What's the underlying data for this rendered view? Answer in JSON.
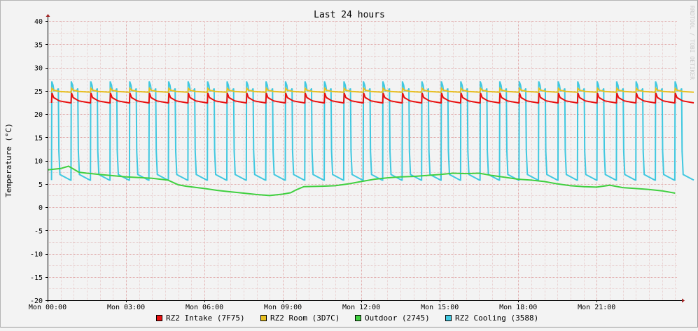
{
  "chart_data": {
    "type": "line",
    "title": "Last 24 hours",
    "ylabel": "Temperature (°C)",
    "watermark": "RRDTOOL / TOBI OETIKER",
    "ylim": [
      -20,
      40
    ],
    "y_ticks": [
      40,
      35,
      30,
      25,
      20,
      15,
      10,
      5,
      0,
      -5,
      -10,
      -15,
      -20
    ],
    "x_range_hours": [
      0,
      24.1
    ],
    "x_ticks": [
      {
        "h": 0,
        "label": "Mon 00:00"
      },
      {
        "h": 3,
        "label": "Mon 03:00"
      },
      {
        "h": 6,
        "label": "Mon 06:00"
      },
      {
        "h": 9,
        "label": "Mon 09:00"
      },
      {
        "h": 12,
        "label": "Mon 12:00"
      },
      {
        "h": 15,
        "label": "Mon 15:00"
      },
      {
        "h": 18,
        "label": "Mon 18:00"
      },
      {
        "h": 21,
        "label": "Mon 21:00"
      }
    ],
    "grid": true,
    "legend_position": "bottom",
    "series": [
      {
        "name": "RZ2 Intake (7F75)",
        "color": "#e81010",
        "kind": "cycle",
        "period_h": 0.745,
        "phase_h": 0.15,
        "peak": 24.5,
        "base": 22.4
      },
      {
        "name": "RZ2 Room (3D7C)",
        "color": "#e8c020",
        "kind": "cycle",
        "period_h": 0.745,
        "phase_h": 0.15,
        "peak": 25.5,
        "base": 24.7
      },
      {
        "name": "Outdoor (2745)",
        "color": "#40d040",
        "kind": "points",
        "x": [
          0,
          0.5,
          0.8,
          1.2,
          1.5,
          2,
          3,
          4,
          4.6,
          5,
          5.3,
          6,
          6.5,
          7,
          7.5,
          8,
          8.5,
          9,
          9.3,
          9.5,
          9.8,
          10.5,
          11,
          11.5,
          12,
          12.5,
          13,
          13.5,
          14,
          14.5,
          15,
          15.5,
          16,
          16.5,
          17,
          17.5,
          18,
          18.5,
          19,
          19.5,
          20,
          20.5,
          21,
          21.5,
          22,
          22.5,
          23,
          23.5,
          24
        ],
        "y": [
          8,
          8.3,
          8.8,
          7.5,
          7.3,
          7,
          6.5,
          6.2,
          5.8,
          4.8,
          4.5,
          4,
          3.6,
          3.3,
          3,
          2.7,
          2.5,
          2.8,
          3.1,
          3.7,
          4.4,
          4.5,
          4.6,
          5,
          5.5,
          6,
          6.3,
          6.5,
          6.6,
          6.8,
          7,
          7.3,
          7.2,
          7.3,
          6.8,
          6.4,
          6,
          5.8,
          5.5,
          5,
          4.6,
          4.4,
          4.3,
          4.7,
          4.2,
          4,
          3.8,
          3.5,
          3
        ]
      },
      {
        "name": "RZ2 Cooling (3588)",
        "color": "#40c8e0",
        "kind": "cycle",
        "period_h": 0.745,
        "phase_h": 0.15,
        "peak": 27,
        "high": 25,
        "base": 5.8
      }
    ]
  }
}
